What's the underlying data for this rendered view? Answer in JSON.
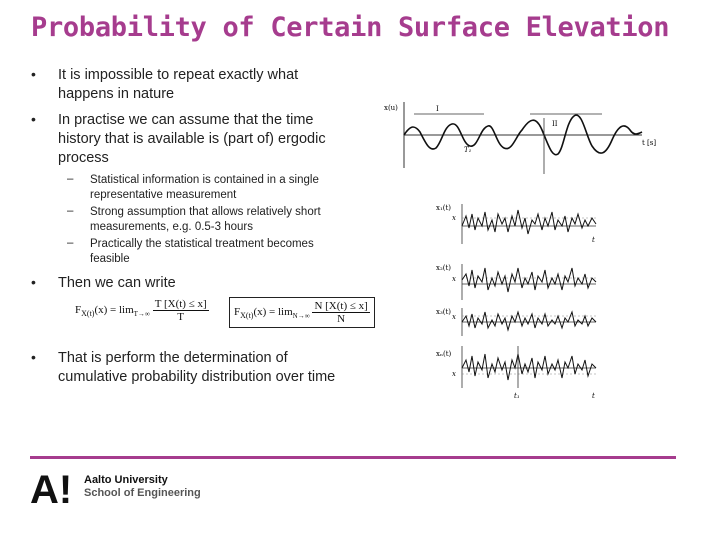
{
  "title": "Probability of Certain Surface Elevation",
  "bullets": [
    {
      "text_lines": [
        "It is impossible to repeat exactly what",
        "happens in nature"
      ]
    },
    {
      "text_lines": [
        "In practise we can assume that the time",
        "history that is available is (part of) ergodic",
        "process"
      ]
    },
    {
      "text_lines": [
        "Then we can write"
      ]
    },
    {
      "text_lines": [
        "That is perform the determination of",
        "cumulative probability distribution over time"
      ]
    }
  ],
  "sub_bullets": [
    {
      "text_lines": [
        "Statistical information is contained in a single",
        "representative measurement"
      ]
    },
    {
      "text_lines": [
        "Strong assumption that allows relatively short",
        "measurements, e.g. 0.5-3 hours"
      ]
    },
    {
      "text_lines": [
        "Practically the statistical treatment becomes",
        "feasible"
      ]
    }
  ],
  "formula1": {
    "lhs": "F",
    "lhs_sub": "X(t)",
    "arg": "(x) = lim",
    "lim_sub": "T→∞",
    "num": "T [X(t) ≤ x]",
    "den": "T"
  },
  "formula2": {
    "lhs": "F",
    "lhs_sub": "X(t)",
    "arg": "(x) = lim",
    "lim_sub": "N→∞",
    "num": "N [X(t) ≤ x]",
    "den": "N"
  },
  "figure_top": {
    "y_label": "x(u)",
    "mark_i": "I",
    "mark_ii": "II",
    "segment_label": "T₁",
    "t_label": "t [s]"
  },
  "figure_ensemble": {
    "labels": [
      "x₁(t)",
      "x₂(t)",
      "x₃(t)",
      "xₙ(t)"
    ],
    "x_marks": [
      "x",
      "x",
      "x",
      "x"
    ],
    "t_labels": [
      "t",
      "t"
    ],
    "t1_label": "t₁"
  },
  "logo": {
    "mark": "A!",
    "line1": "Aalto University",
    "line2": "School of Engineering"
  },
  "colors": {
    "accent": "#a63c8e",
    "text": "#222222"
  }
}
